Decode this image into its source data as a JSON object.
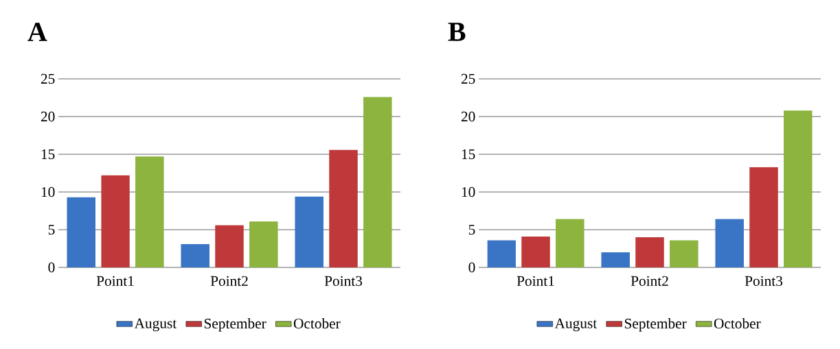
{
  "chart_data": [
    {
      "type": "bar",
      "title": "A",
      "categories": [
        "Point1",
        "Point2",
        "Point3"
      ],
      "series": [
        {
          "name": "August",
          "color": "#3a74c4",
          "values": [
            9.3,
            3.1,
            9.4
          ]
        },
        {
          "name": "September",
          "color": "#c0393a",
          "values": [
            12.2,
            5.6,
            15.6
          ]
        },
        {
          "name": "October",
          "color": "#8cb43e",
          "values": [
            14.7,
            6.1,
            22.6
          ]
        }
      ],
      "ylim": [
        0,
        25
      ],
      "yticks": [
        0,
        5,
        10,
        15,
        20,
        25
      ],
      "grid": "y",
      "legend": "bottom"
    },
    {
      "type": "bar",
      "title": "B",
      "categories": [
        "Point1",
        "Point2",
        "Point3"
      ],
      "series": [
        {
          "name": "August",
          "color": "#3a74c4",
          "values": [
            3.6,
            2.0,
            6.4
          ]
        },
        {
          "name": "September",
          "color": "#c0393a",
          "values": [
            4.1,
            4.0,
            13.3
          ]
        },
        {
          "name": "October",
          "color": "#8cb43e",
          "values": [
            6.4,
            3.6,
            20.8
          ]
        }
      ],
      "ylim": [
        0,
        25
      ],
      "yticks": [
        0,
        5,
        10,
        15,
        20,
        25
      ],
      "grid": "y",
      "legend": "bottom"
    }
  ]
}
